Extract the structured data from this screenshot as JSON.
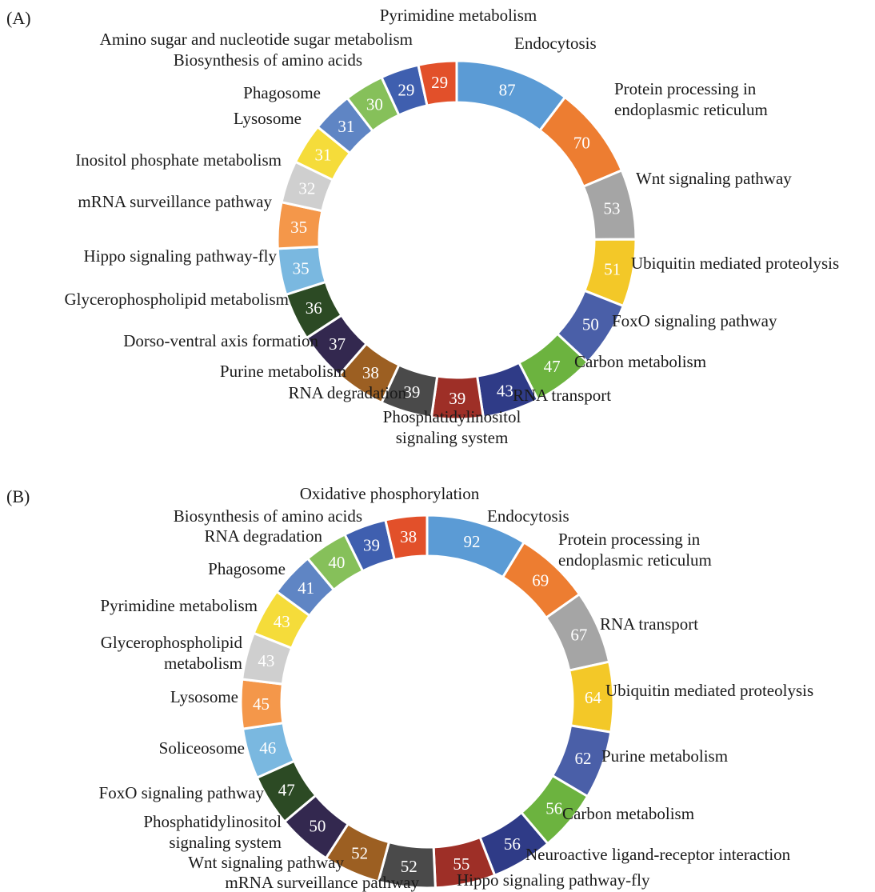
{
  "chart_data": [
    {
      "type": "pie",
      "panel_label": "(A)",
      "categories": [
        [
          "Endocytosis"
        ],
        [
          "Protein processing in",
          "endoplasmic reticulum"
        ],
        [
          "Wnt signaling pathway"
        ],
        [
          "Ubiquitin mediated proteolysis"
        ],
        [
          "FoxO signaling pathway"
        ],
        [
          "Carbon metabolism"
        ],
        [
          "RNA transport"
        ],
        [
          "Phosphatidylinositol",
          "signaling system"
        ],
        [
          "RNA degradation"
        ],
        [
          "Purine metabolism"
        ],
        [
          "Dorso-ventral axis formation"
        ],
        [
          "Glycerophospholipid metabolism"
        ],
        [
          "Hippo signaling pathway-fly"
        ],
        [
          "mRNA surveillance pathway"
        ],
        [
          "Inositol phosphate metabolism"
        ],
        [
          "Lysosome"
        ],
        [
          "Phagosome"
        ],
        [
          "Biosynthesis of amino acids"
        ],
        [
          "Amino sugar and nucleotide sugar metabolism"
        ],
        [
          "Pyrimidine metabolism"
        ]
      ],
      "values": [
        87,
        70,
        53,
        51,
        50,
        47,
        43,
        39,
        39,
        38,
        37,
        36,
        35,
        35,
        32,
        31,
        31,
        30,
        29,
        29
      ],
      "colors": [
        "#5b9bd5",
        "#ed7d31",
        "#a5a5a5",
        "#f3c828",
        "#4a5fa8",
        "#6cb33f",
        "#2f3b87",
        "#9e2f27",
        "#4a4a4a",
        "#9c5f22",
        "#33284f",
        "#2c4a24",
        "#7ab8e0",
        "#f4974a",
        "#cfcfcf",
        "#f5dc3a",
        "#5f85c4",
        "#86c05a",
        "#3f5faf",
        "#e2502a"
      ]
    },
    {
      "type": "pie",
      "panel_label": "(B)",
      "categories": [
        [
          "Endocytosis"
        ],
        [
          "Protein processing in",
          "endoplasmic reticulum"
        ],
        [
          "RNA transport"
        ],
        [
          "Ubiquitin mediated proteolysis"
        ],
        [
          "Purine metabolism"
        ],
        [
          "Carbon metabolism"
        ],
        [
          "Neuroactive ligand-receptor interaction"
        ],
        [
          "Hippo signaling pathway-fly"
        ],
        [
          "mRNA surveillance pathway"
        ],
        [
          "Wnt signaling pathway"
        ],
        [
          "Phosphatidylinositol",
          "signaling system"
        ],
        [
          "FoxO signaling pathway"
        ],
        [
          "Soliceosome"
        ],
        [
          "Lysosome"
        ],
        [
          "Glycerophospholipid",
          "metabolism"
        ],
        [
          "Pyrimidine metabolism"
        ],
        [
          "Phagosome"
        ],
        [
          "RNA degradation"
        ],
        [
          "Biosynthesis of amino acids"
        ],
        [
          "Oxidative phosphorylation"
        ]
      ],
      "values": [
        92,
        69,
        67,
        64,
        62,
        56,
        56,
        55,
        52,
        52,
        50,
        47,
        46,
        45,
        43,
        43,
        41,
        40,
        39,
        38
      ],
      "colors": [
        "#5b9bd5",
        "#ed7d31",
        "#a5a5a5",
        "#f3c828",
        "#4a5fa8",
        "#6cb33f",
        "#2f3b87",
        "#9e2f27",
        "#4a4a4a",
        "#9c5f22",
        "#33284f",
        "#2c4a24",
        "#7ab8e0",
        "#f4974a",
        "#cfcfcf",
        "#f5dc3a",
        "#5f85c4",
        "#86c05a",
        "#3f5faf",
        "#e2502a"
      ]
    }
  ]
}
